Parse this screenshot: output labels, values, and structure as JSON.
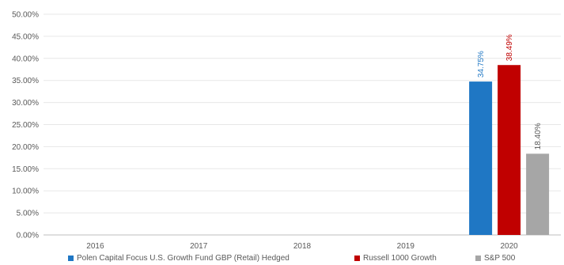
{
  "chart_data": {
    "type": "bar",
    "categories": [
      "2016",
      "2017",
      "2018",
      "2019",
      "2020"
    ],
    "series": [
      {
        "name": "Polen Capital Focus U.S. Growth Fund GBP (Retail) Hedged",
        "color": "#1f77c4",
        "label_color": "#1f77c4",
        "values": [
          null,
          null,
          null,
          null,
          34.75
        ],
        "data_labels": [
          "",
          "",
          "",
          "",
          "34.75%"
        ]
      },
      {
        "name": "Russell 1000 Growth",
        "color": "#c00000",
        "label_color": "#c00000",
        "values": [
          null,
          null,
          null,
          null,
          38.49
        ],
        "data_labels": [
          "",
          "",
          "",
          "",
          "38.49%"
        ]
      },
      {
        "name": "S&P 500",
        "color": "#a6a6a6",
        "label_color": "#595959",
        "values": [
          null,
          null,
          null,
          null,
          18.4
        ],
        "data_labels": [
          "",
          "",
          "",
          "",
          "18.40%"
        ]
      }
    ],
    "y_ticks": [
      "0.00%",
      "5.00%",
      "10.00%",
      "15.00%",
      "20.00%",
      "25.00%",
      "30.00%",
      "35.00%",
      "40.00%",
      "45.00%",
      "50.00%"
    ],
    "ylim": [
      0,
      50
    ],
    "grid": true,
    "legend_position": "bottom"
  }
}
